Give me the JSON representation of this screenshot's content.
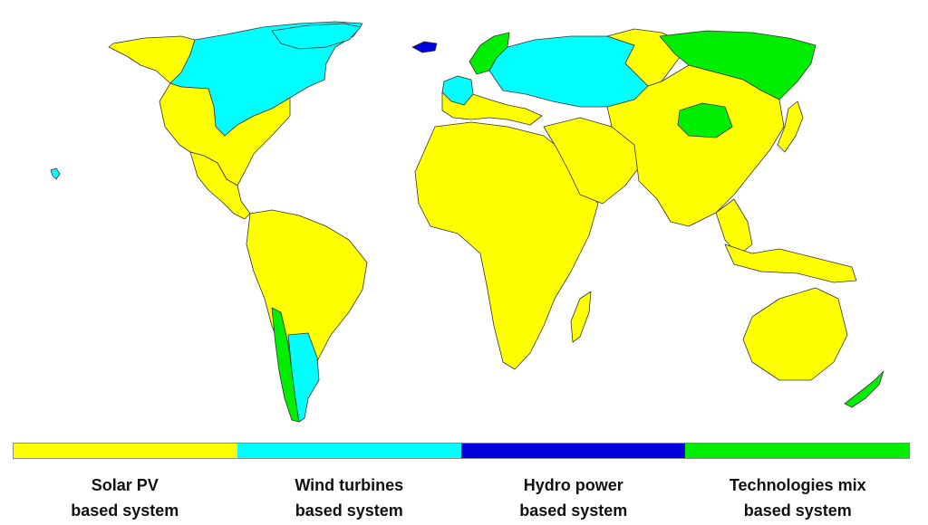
{
  "map": {
    "regions": [
      {
        "name": "canada",
        "category": "wind"
      },
      {
        "name": "alaska",
        "category": "solar"
      },
      {
        "name": "greenland-islands",
        "category": "wind"
      },
      {
        "name": "north-america-south",
        "category": "solar"
      },
      {
        "name": "central-america",
        "category": "solar"
      },
      {
        "name": "south-america",
        "category": "solar"
      },
      {
        "name": "chile",
        "category": "mix"
      },
      {
        "name": "argentina-south",
        "category": "wind"
      },
      {
        "name": "iceland",
        "category": "hydro"
      },
      {
        "name": "scandinavia",
        "category": "mix"
      },
      {
        "name": "western-europe",
        "category": "wind"
      },
      {
        "name": "eastern-europe",
        "category": "wind"
      },
      {
        "name": "southern-europe",
        "category": "solar"
      },
      {
        "name": "africa",
        "category": "solar"
      },
      {
        "name": "madagascar",
        "category": "solar"
      },
      {
        "name": "middle-east",
        "category": "solar"
      },
      {
        "name": "russia-west",
        "category": "solar"
      },
      {
        "name": "russia-east",
        "category": "mix"
      },
      {
        "name": "mongolia",
        "category": "mix"
      },
      {
        "name": "asia-central-south",
        "category": "solar"
      },
      {
        "name": "japan",
        "category": "solar"
      },
      {
        "name": "southeast-asia",
        "category": "solar"
      },
      {
        "name": "indonesia",
        "category": "solar"
      },
      {
        "name": "australia",
        "category": "solar"
      },
      {
        "name": "new-zealand",
        "category": "mix"
      },
      {
        "name": "hawaii",
        "category": "wind"
      }
    ]
  },
  "legend": {
    "items": [
      {
        "key": "solar",
        "color": "#ffff00",
        "line1": "Solar PV",
        "line2": "based system"
      },
      {
        "key": "wind",
        "color": "#00ffff",
        "line1": "Wind turbines",
        "line2": "based system"
      },
      {
        "key": "hydro",
        "color": "#0000dd",
        "line1": "Hydro power",
        "line2": "based system"
      },
      {
        "key": "mix",
        "color": "#00ee00",
        "line1": "Technologies mix",
        "line2": "based system"
      }
    ]
  }
}
